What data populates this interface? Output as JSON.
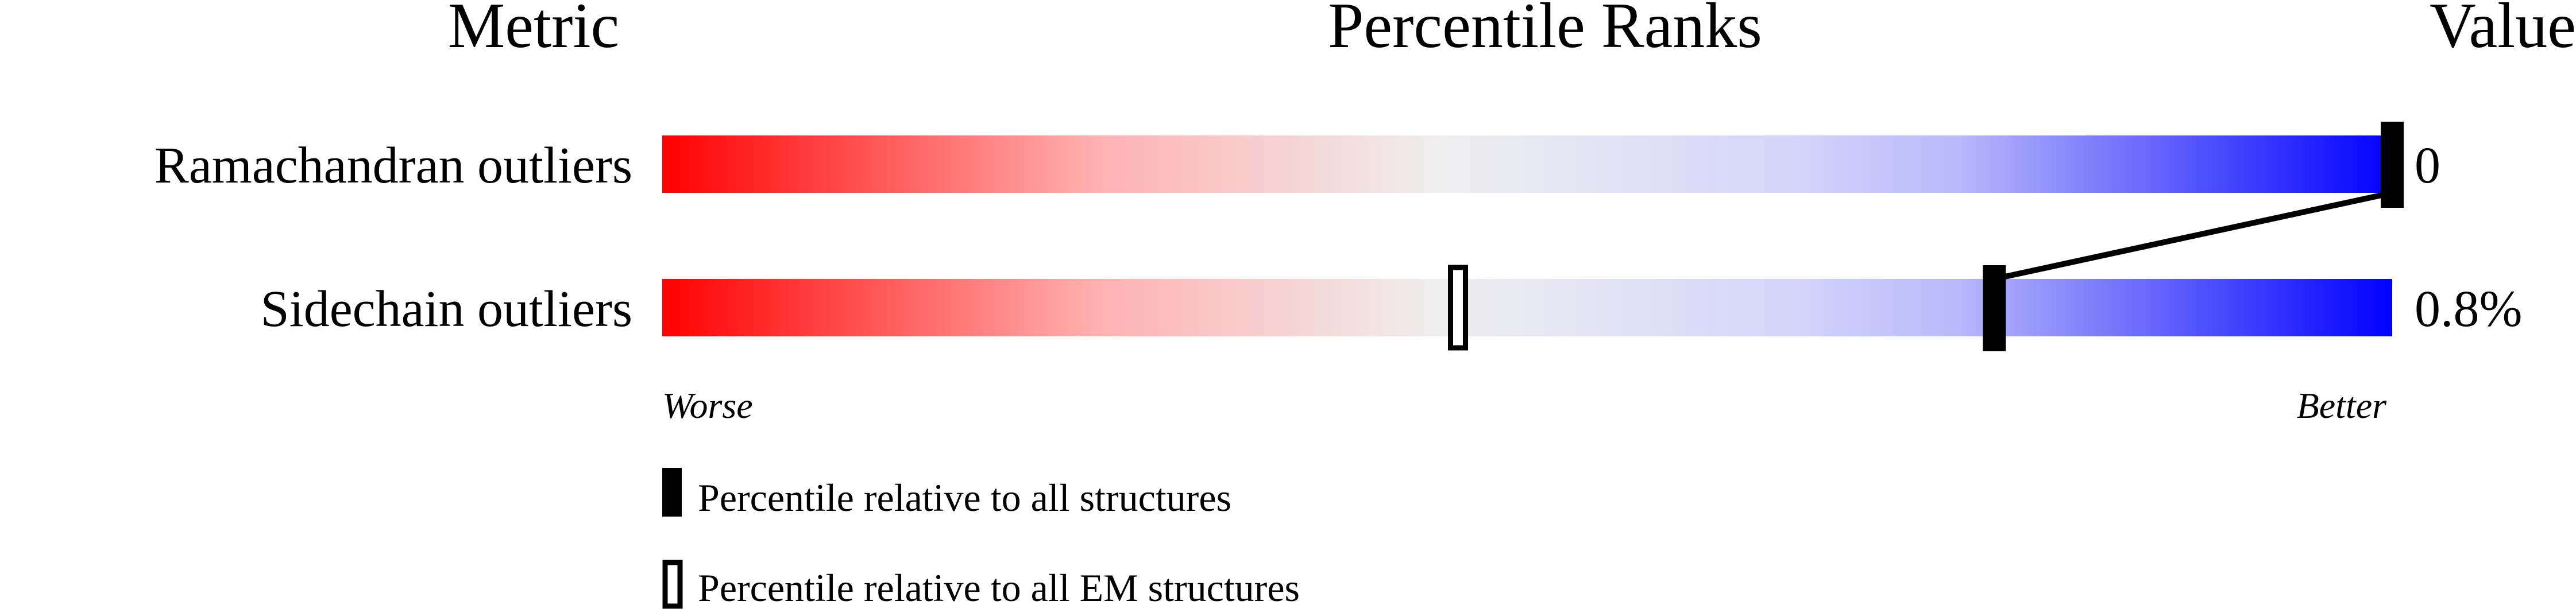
{
  "chart_data": {
    "type": "percentile-slider",
    "headers": {
      "metric": "Metric",
      "ranks": "Percentile Ranks",
      "value": "Value"
    },
    "xlim": [
      0,
      100
    ],
    "gradient_colors": [
      "#ff0000",
      "#ffb0b0",
      "#efefef",
      "#d5d5fb",
      "#b8b8fa",
      "#0000ff"
    ],
    "rows": [
      {
        "metric": "Ramachandran outliers",
        "value": "0",
        "percentile_all": 100,
        "percentile_em": null
      },
      {
        "metric": "Sidechain outliers",
        "value": "0.8%",
        "percentile_all": 77,
        "percentile_em": 46
      }
    ],
    "axis_labels": {
      "left": "Worse",
      "right": "Better"
    },
    "legend": [
      {
        "label": "Percentile relative to all structures",
        "marker": "filled"
      },
      {
        "label": "Percentile relative to all EM structures",
        "marker": "hollow"
      }
    ]
  }
}
